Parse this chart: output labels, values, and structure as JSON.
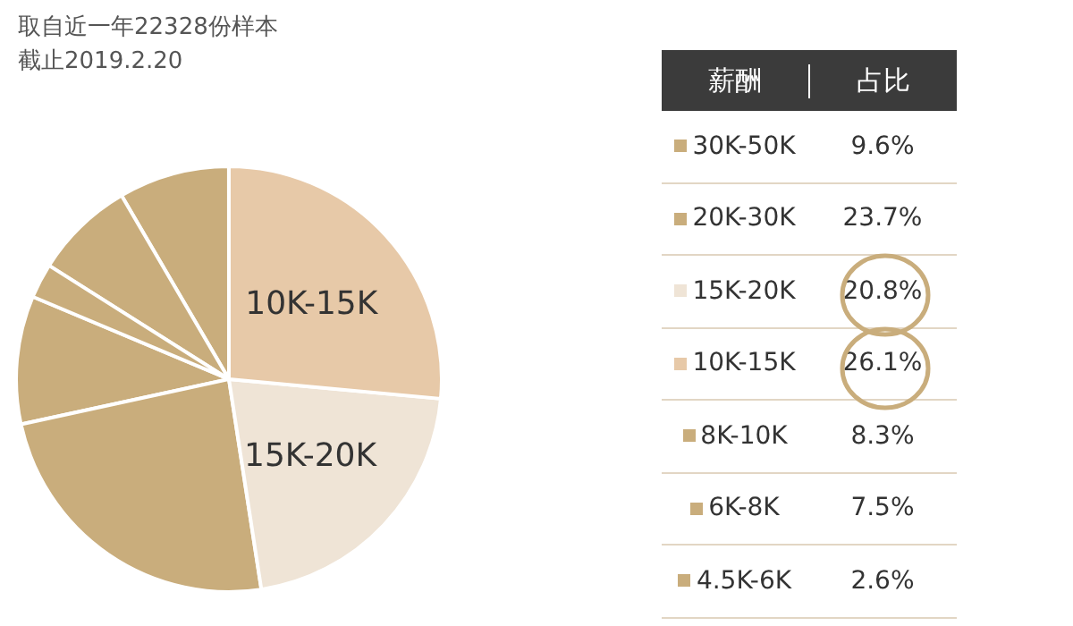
{
  "chart_data": {
    "type": "pie",
    "title": "取自近一年22328份样本",
    "subtitle": "截止2019.2.20",
    "categories": [
      "30K-50K",
      "20K-30K",
      "15K-20K",
      "10K-15K",
      "8K-10K",
      "6K-8K",
      "4.5K-6K"
    ],
    "values": [
      9.6,
      23.7,
      20.8,
      26.1,
      8.3,
      7.5,
      2.6
    ],
    "value_labels": [
      "9.6%",
      "23.7%",
      "20.8%",
      "26.1%",
      "8.3%",
      "7.5%",
      "2.6%"
    ],
    "colors": [
      "#c9ad7c",
      "#c9ad7c",
      "#efe4d6",
      "#e7c9a8",
      "#c9ad7c",
      "#c9ad7c",
      "#c9ad7c"
    ],
    "annotations": [
      "薪酬",
      "占比",
      {
        "text": "10K-15K",
        "x": "10K-15K"
      },
      {
        "text": "15K-20K",
        "x": "15K-20K"
      }
    ],
    "legend": "right"
  }
}
